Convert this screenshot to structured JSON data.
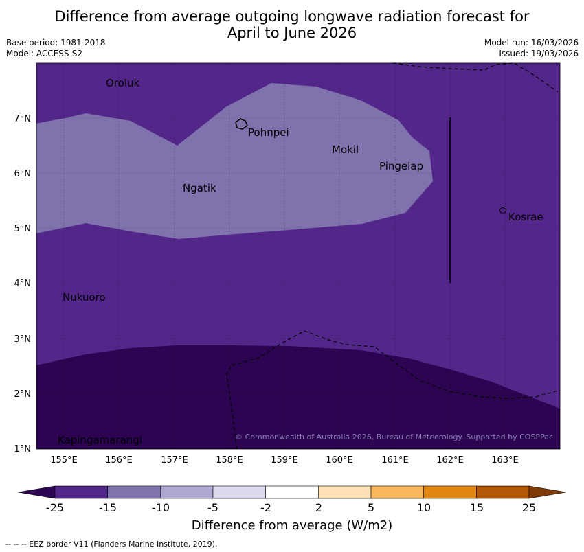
{
  "header": {
    "title_line1": "Difference from average outgoing longwave radiation forecast for",
    "title_line2": "April to June 2026",
    "base_period": "Base period: 1981-2018",
    "model": "Model: ACCESS-S2",
    "model_run": "Model run: 16/03/2026",
    "issued": "Issued: 19/03/2026"
  },
  "map": {
    "lat_ticks": [
      "7°N",
      "6°N",
      "5°N",
      "4°N",
      "3°N",
      "2°N",
      "1°N"
    ],
    "lon_ticks": [
      "155°E",
      "156°E",
      "157°E",
      "158°E",
      "159°E",
      "160°E",
      "161°E",
      "162°E",
      "163°E"
    ],
    "places": [
      "Oroluk",
      "Pohnpei",
      "Mokil",
      "Pingelap",
      "Ngatik",
      "Kosrae",
      "Nukuoro",
      "Kapingamarangi"
    ],
    "copyright": "© Commonwealth of Australia 2026, Bureau of Meteorology. Supported by COSPPac",
    "colors": {
      "band_minus15_minus10": "#7f72ad",
      "band_minus25_minus15": "#53268a",
      "band_below_minus25": "#2c0451",
      "eez_line": "#000000"
    }
  },
  "colorbar": {
    "labels": [
      "-25",
      "-15",
      "-10",
      "-5",
      "-2",
      "2",
      "5",
      "10",
      "15",
      "25"
    ],
    "colors": [
      "#2c0451",
      "#53268a",
      "#7f72ad",
      "#b0a8d2",
      "#dcdaed",
      "#ffffff",
      "#fde0b6",
      "#fbb760",
      "#e08613",
      "#b35808",
      "#7f3c08"
    ],
    "title": "Difference from average (W/m2)"
  },
  "footnote": "--  --  -- EEZ border V11 (Flanders Marine Institute, 2019)."
}
